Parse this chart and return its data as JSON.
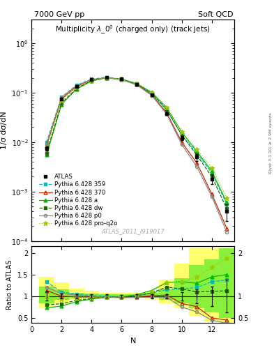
{
  "title_top_left": "7000 GeV pp",
  "title_top_right": "Soft QCD",
  "plot_title": "Multiplicity $\\lambda\\_0^0$ (charged only) (track jets)",
  "watermark": "ATLAS_2011_I919017",
  "right_label": "Rivet 3.1.10; ≥ 2.9M events",
  "xlabel": "N",
  "ylabel_main": "1/σ dσ/dN",
  "ylabel_ratio": "Ratio to ATLAS",
  "N_values": [
    1,
    2,
    3,
    4,
    5,
    6,
    7,
    8,
    9,
    10,
    11,
    12,
    13
  ],
  "ATLAS_y": [
    0.0075,
    0.075,
    0.135,
    0.185,
    0.205,
    0.19,
    0.148,
    0.09,
    0.038,
    0.012,
    0.005,
    0.0018,
    0.0004
  ],
  "ATLAS_yerr": [
    0.0008,
    0.004,
    0.006,
    0.007,
    0.008,
    0.007,
    0.006,
    0.004,
    0.002,
    0.0012,
    0.0008,
    0.0004,
    0.00015
  ],
  "py359_y": [
    0.01,
    0.082,
    0.142,
    0.188,
    0.205,
    0.188,
    0.15,
    0.096,
    0.044,
    0.014,
    0.006,
    0.0024,
    0.00055
  ],
  "py370_y": [
    0.0085,
    0.075,
    0.133,
    0.182,
    0.2,
    0.185,
    0.146,
    0.091,
    0.039,
    0.01,
    0.0038,
    0.0009,
    0.00018
  ],
  "pya_y": [
    0.0055,
    0.058,
    0.118,
    0.173,
    0.2,
    0.188,
    0.153,
    0.102,
    0.05,
    0.016,
    0.0065,
    0.0026,
    0.0006
  ],
  "pydw_y": [
    0.006,
    0.062,
    0.122,
    0.175,
    0.2,
    0.186,
    0.15,
    0.097,
    0.046,
    0.014,
    0.0055,
    0.002,
    0.00045
  ],
  "pyp0_y": [
    0.009,
    0.08,
    0.138,
    0.185,
    0.2,
    0.183,
    0.144,
    0.088,
    0.037,
    0.009,
    0.0032,
    0.0008,
    0.00015
  ],
  "pypro_y": [
    0.0075,
    0.07,
    0.128,
    0.178,
    0.2,
    0.188,
    0.152,
    0.1,
    0.05,
    0.016,
    0.0072,
    0.003,
    0.00075
  ],
  "ratio_band_yellow_lo": [
    0.72,
    0.84,
    0.92,
    0.95,
    0.96,
    0.96,
    0.95,
    0.93,
    0.84,
    0.72,
    0.55,
    0.42,
    0.28
  ],
  "ratio_band_yellow_hi": [
    1.45,
    1.32,
    1.18,
    1.12,
    1.08,
    1.07,
    1.08,
    1.13,
    1.38,
    1.75,
    2.1,
    2.1,
    2.1
  ],
  "ratio_band_green_lo": [
    0.84,
    0.92,
    0.96,
    0.97,
    0.98,
    0.98,
    0.97,
    0.96,
    0.92,
    0.84,
    0.72,
    0.62,
    0.5
  ],
  "ratio_band_green_hi": [
    1.22,
    1.15,
    1.08,
    1.06,
    1.04,
    1.04,
    1.05,
    1.07,
    1.16,
    1.42,
    1.72,
    1.85,
    2.1
  ],
  "colors": {
    "ATLAS": "#000000",
    "py359": "#00BBBB",
    "py370": "#CC2200",
    "pya": "#00BB00",
    "pydw": "#226600",
    "pyp0": "#888888",
    "pypro": "#99CC00"
  },
  "ylim_main": [
    0.0001,
    3.0
  ],
  "ylim_ratio": [
    0.38,
    2.15
  ],
  "xlim": [
    0.5,
    13.5
  ],
  "xticks": [
    0,
    2,
    4,
    6,
    8,
    10,
    12
  ]
}
